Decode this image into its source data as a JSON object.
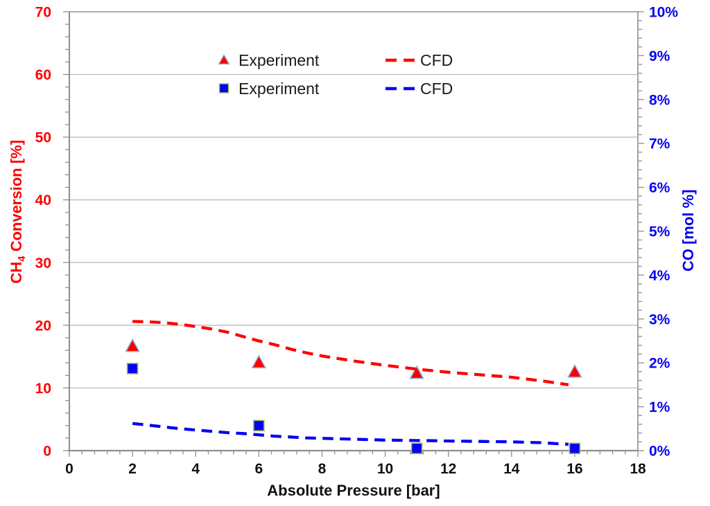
{
  "chart_data": {
    "type": "line",
    "title": "",
    "xlabel": "Absolute Pressure [bar]",
    "ylabel_left": "CH4 Conversion [%]",
    "ylabel_left_parts": {
      "main": "CH",
      "sub": "4",
      "rest": " Conversion [%]"
    },
    "ylabel_right": "CO [mol %]",
    "x_axis": {
      "min": 0,
      "max": 18,
      "major_step": 2,
      "minor_step": 0.4,
      "tick_labels": [
        "0",
        "2",
        "4",
        "6",
        "8",
        "10",
        "12",
        "14",
        "16",
        "18"
      ]
    },
    "y_left_axis": {
      "min": 0,
      "max": 70,
      "major_step": 10,
      "minor_step": 2,
      "color": "#fd0000",
      "tick_labels": [
        "0",
        "10",
        "20",
        "30",
        "40",
        "50",
        "60",
        "70"
      ]
    },
    "y_right_axis": {
      "min": 0,
      "max": 10,
      "major_step": 1,
      "minor_step": 0.2,
      "color": "#0404f0",
      "tick_labels": [
        "0%",
        "1%",
        "2%",
        "3%",
        "4%",
        "5%",
        "6%",
        "7%",
        "8%",
        "9%",
        "10%"
      ]
    },
    "grid": "horizontal-major-only",
    "legend_position": "top-center-inside",
    "series": [
      {
        "id": "ch4-experiment",
        "label": "Experiment",
        "axis": "left",
        "style": "scatter",
        "marker": "triangle",
        "color": "red",
        "points": [
          [
            2,
            16.7
          ],
          [
            6,
            14.1
          ],
          [
            11,
            12.4
          ],
          [
            16,
            12.6
          ]
        ]
      },
      {
        "id": "ch4-cfd",
        "label": "CFD",
        "axis": "left",
        "style": "dashed-line",
        "color": "red",
        "points": [
          [
            2,
            20.6
          ],
          [
            2.5,
            20.55
          ],
          [
            3,
            20.4
          ],
          [
            3.5,
            20.15
          ],
          [
            4,
            19.8
          ],
          [
            4.5,
            19.4
          ],
          [
            5,
            18.9
          ],
          [
            5.5,
            18.2
          ],
          [
            6,
            17.5
          ],
          [
            6.5,
            16.9
          ],
          [
            7,
            16.2
          ],
          [
            7.5,
            15.6
          ],
          [
            8,
            15.1
          ],
          [
            8.5,
            14.7
          ],
          [
            9,
            14.3
          ],
          [
            9.5,
            13.95
          ],
          [
            10,
            13.6
          ],
          [
            10.5,
            13.3
          ],
          [
            11,
            13.0
          ],
          [
            11.5,
            12.75
          ],
          [
            12,
            12.5
          ],
          [
            12.5,
            12.3
          ],
          [
            13,
            12.1
          ],
          [
            13.5,
            11.9
          ],
          [
            14,
            11.7
          ],
          [
            14.5,
            11.4
          ],
          [
            15,
            11.1
          ],
          [
            15.4,
            10.8
          ],
          [
            15.8,
            10.5
          ]
        ]
      },
      {
        "id": "co-experiment",
        "label": "Experiment",
        "axis": "right",
        "style": "scatter",
        "marker": "square",
        "color": "blue",
        "points": [
          [
            2,
            1.87
          ],
          [
            6,
            0.57
          ],
          [
            11,
            0.05
          ],
          [
            16,
            0.05
          ]
        ]
      },
      {
        "id": "co-cfd",
        "label": "CFD",
        "axis": "right",
        "style": "dashed-line",
        "color": "blue",
        "points": [
          [
            2,
            0.62
          ],
          [
            2.5,
            0.58
          ],
          [
            3,
            0.54
          ],
          [
            3.5,
            0.5
          ],
          [
            4,
            0.47
          ],
          [
            4.5,
            0.44
          ],
          [
            5,
            0.41
          ],
          [
            5.5,
            0.39
          ],
          [
            6,
            0.36
          ],
          [
            6.5,
            0.33
          ],
          [
            7,
            0.31
          ],
          [
            7.5,
            0.29
          ],
          [
            8,
            0.28
          ],
          [
            8.5,
            0.27
          ],
          [
            9,
            0.26
          ],
          [
            9.5,
            0.25
          ],
          [
            10,
            0.24
          ],
          [
            10.5,
            0.235
          ],
          [
            11,
            0.23
          ],
          [
            11.5,
            0.225
          ],
          [
            12,
            0.22
          ],
          [
            12.5,
            0.215
          ],
          [
            13,
            0.21
          ],
          [
            13.5,
            0.205
          ],
          [
            14,
            0.2
          ],
          [
            14.5,
            0.19
          ],
          [
            15,
            0.18
          ],
          [
            15.4,
            0.16
          ],
          [
            15.8,
            0.145
          ]
        ]
      }
    ],
    "legend": {
      "rows": [
        {
          "experiment_label": "Experiment",
          "cfd_label": "CFD",
          "series_color": "red"
        },
        {
          "experiment_label": "Experiment",
          "cfd_label": "CFD",
          "series_color": "blue"
        }
      ]
    },
    "colors": {
      "red": "#fd0000",
      "blue": "#0404f0",
      "grid": "#b5b5b5",
      "axis": "#8e8e8e",
      "x_text": "#111111",
      "legend_text": "#1a1a1a",
      "triangle_border": "#95b3d7",
      "square_border": "#9cbb59"
    }
  }
}
